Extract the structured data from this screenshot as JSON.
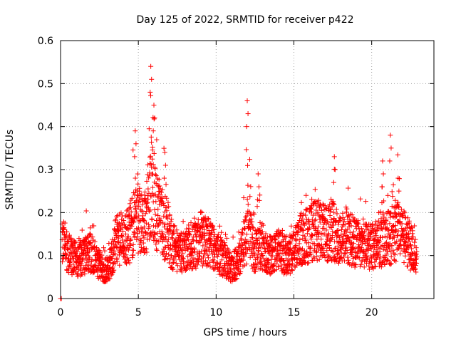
{
  "chart_data": {
    "type": "scatter",
    "title": "Day 125 of 2022, SRMTID for receiver p422",
    "xlabel": "GPS time / hours",
    "ylabel": "SRMTID / TECUs",
    "xlim": [
      0,
      24
    ],
    "ylim": [
      0,
      0.6
    ],
    "xticks": [
      0,
      5,
      10,
      15,
      20
    ],
    "xtick_labels": [
      "0",
      "5",
      "10",
      "15",
      "20"
    ],
    "yticks": [
      0,
      0.1,
      0.2,
      0.3,
      0.4,
      0.5,
      0.6
    ],
    "ytick_labels": [
      "0",
      "0.1",
      "0.2",
      "0.3",
      "0.4",
      "0.5",
      "0.6"
    ],
    "grid": true,
    "marker": "+",
    "color": "#ff0000",
    "x_step_hours": 0.0167,
    "series": [
      {
        "name": "SRMTID",
        "x_start": 0.1,
        "x_end": 22.9,
        "x": [
          0.0,
          0.05
        ],
        "y": [
          0.0,
          0.0
        ],
        "envelope": [
          [
            0.1,
            0.12
          ],
          [
            0.3,
            0.13
          ],
          [
            0.6,
            0.1
          ],
          [
            1.0,
            0.09
          ],
          [
            1.5,
            0.1
          ],
          [
            2.0,
            0.11
          ],
          [
            2.5,
            0.08
          ],
          [
            2.8,
            0.06
          ],
          [
            3.2,
            0.08
          ],
          [
            3.5,
            0.13
          ],
          [
            4.0,
            0.14
          ],
          [
            4.5,
            0.15
          ],
          [
            4.8,
            0.2
          ],
          [
            5.2,
            0.17
          ],
          [
            5.6,
            0.2
          ],
          [
            5.9,
            0.26
          ],
          [
            6.2,
            0.2
          ],
          [
            6.5,
            0.17
          ],
          [
            7.0,
            0.13
          ],
          [
            7.5,
            0.11
          ],
          [
            8.0,
            0.11
          ],
          [
            8.5,
            0.12
          ],
          [
            9.0,
            0.14
          ],
          [
            9.5,
            0.13
          ],
          [
            10.0,
            0.11
          ],
          [
            10.5,
            0.09
          ],
          [
            11.0,
            0.07
          ],
          [
            11.5,
            0.09
          ],
          [
            12.0,
            0.15
          ],
          [
            12.5,
            0.11
          ],
          [
            13.0,
            0.12
          ],
          [
            13.5,
            0.1
          ],
          [
            14.0,
            0.11
          ],
          [
            14.5,
            0.1
          ],
          [
            15.0,
            0.11
          ],
          [
            15.5,
            0.14
          ],
          [
            16.0,
            0.15
          ],
          [
            16.5,
            0.16
          ],
          [
            17.0,
            0.15
          ],
          [
            17.5,
            0.16
          ],
          [
            18.0,
            0.14
          ],
          [
            18.5,
            0.14
          ],
          [
            19.0,
            0.13
          ],
          [
            19.5,
            0.12
          ],
          [
            20.0,
            0.12
          ],
          [
            20.5,
            0.13
          ],
          [
            21.0,
            0.14
          ],
          [
            21.5,
            0.15
          ],
          [
            22.0,
            0.15
          ],
          [
            22.5,
            0.12
          ],
          [
            22.9,
            0.09
          ]
        ],
        "peaks": [
          [
            4.8,
            0.39
          ],
          [
            5.8,
            0.54
          ],
          [
            6.0,
            0.45
          ],
          [
            12.0,
            0.46
          ],
          [
            12.7,
            0.29
          ],
          [
            17.6,
            0.33
          ],
          [
            20.7,
            0.32
          ],
          [
            21.2,
            0.38
          ],
          [
            21.7,
            0.28
          ],
          [
            6.7,
            0.34
          ]
        ]
      }
    ]
  }
}
